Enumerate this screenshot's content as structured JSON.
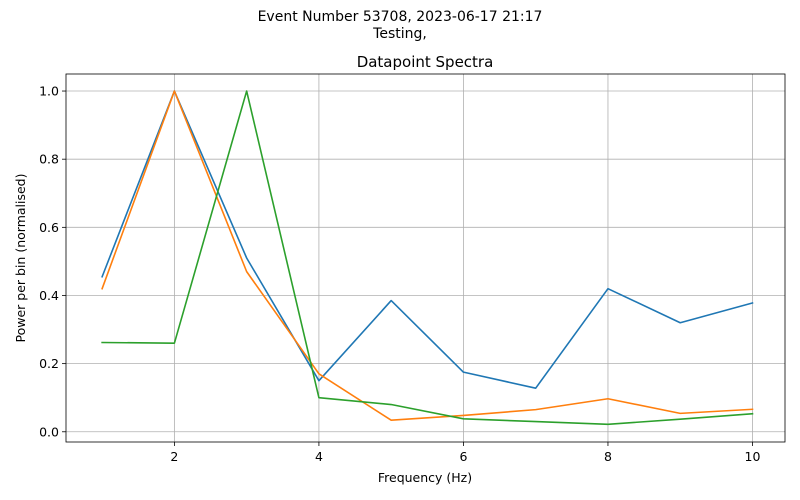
{
  "figure": {
    "suptitle_line1": "Event Number 53708, 2023-06-17 21:17",
    "suptitle_line2": "Testing,"
  },
  "chart_data": {
    "type": "line",
    "title": "Datapoint Spectra",
    "xlabel": "Frequency (Hz)",
    "ylabel": "Power per bin (normalised)",
    "xlim": [
      0.5,
      10.45
    ],
    "ylim": [
      -0.03,
      1.05
    ],
    "xticks": [
      2,
      4,
      6,
      8,
      10
    ],
    "yticks": [
      0.0,
      0.2,
      0.4,
      0.6,
      0.8,
      1.0
    ],
    "grid": true,
    "x": [
      1,
      2,
      3,
      4,
      5,
      6,
      7,
      8,
      9,
      10
    ],
    "series": [
      {
        "color": "#1f77b4",
        "values": [
          0.455,
          1.0,
          0.51,
          0.15,
          0.385,
          0.175,
          0.128,
          0.42,
          0.32,
          0.378
        ]
      },
      {
        "color": "#ff7f0e",
        "values": [
          0.42,
          1.0,
          0.47,
          0.17,
          0.034,
          0.048,
          0.065,
          0.097,
          0.054,
          0.066
        ]
      },
      {
        "color": "#2ca02c",
        "values": [
          0.262,
          0.26,
          1.0,
          0.1,
          0.08,
          0.038,
          0.03,
          0.022,
          0.037,
          0.053
        ]
      }
    ]
  }
}
